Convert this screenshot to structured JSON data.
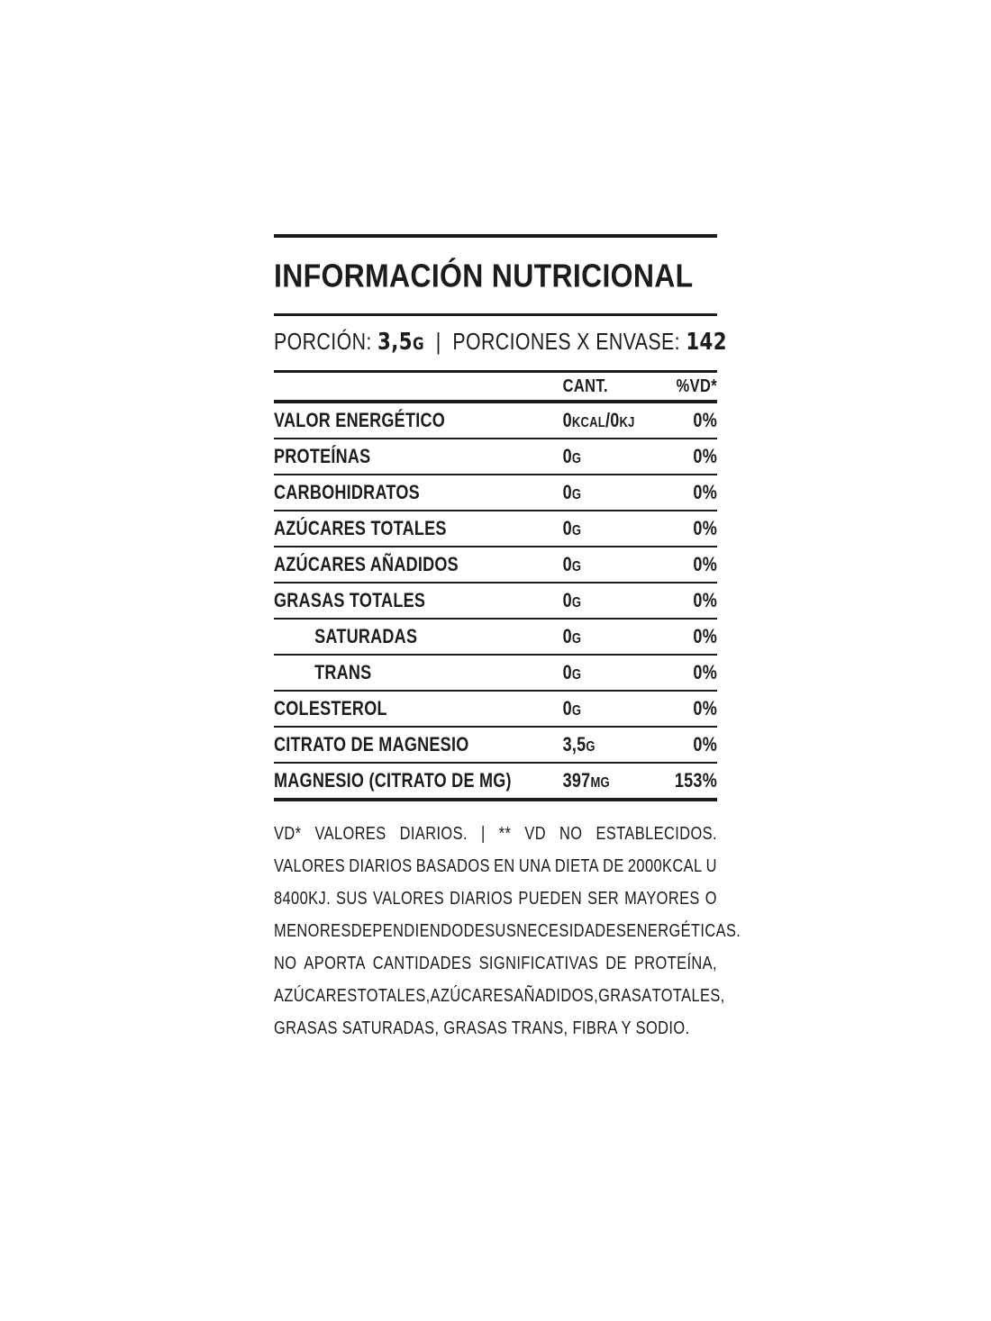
{
  "colors": {
    "ink": "#1c1c1c",
    "background": "#ffffff"
  },
  "panel": {
    "title": "INFORMACIÓN NUTRICIONAL"
  },
  "serving": {
    "parts": [
      {
        "text": "PORCIÓN: "
      },
      {
        "text": "3,5",
        "bold": true
      },
      {
        "text": "G",
        "bold": true,
        "small": true
      },
      {
        "text": "  |  "
      },
      {
        "text": "PORCIONES X ENVASE: "
      },
      {
        "text": "142",
        "bold": true
      }
    ]
  },
  "table": {
    "columns": {
      "amount": "CANT.",
      "daily_value": "%VD*"
    },
    "rows": [
      {
        "label": "VALOR ENERGÉTICO",
        "indent": false,
        "amount": [
          {
            "text": "0"
          },
          {
            "text": "KCAL",
            "small": true
          },
          {
            "text": "/0"
          },
          {
            "text": "KJ",
            "small": true
          }
        ],
        "dv": "0%"
      },
      {
        "label": "PROTEÍNAS",
        "indent": false,
        "amount": [
          {
            "text": "0"
          },
          {
            "text": "G",
            "small": true
          }
        ],
        "dv": "0%"
      },
      {
        "label": "CARBOHIDRATOS",
        "indent": false,
        "amount": [
          {
            "text": "0"
          },
          {
            "text": "G",
            "small": true
          }
        ],
        "dv": "0%"
      },
      {
        "label": "AZÚCARES TOTALES",
        "indent": false,
        "amount": [
          {
            "text": "0"
          },
          {
            "text": "G",
            "small": true
          }
        ],
        "dv": "0%"
      },
      {
        "label": "AZÚCARES AÑADIDOS",
        "indent": false,
        "amount": [
          {
            "text": "0"
          },
          {
            "text": "G",
            "small": true
          }
        ],
        "dv": "0%"
      },
      {
        "label": "GRASAS TOTALES",
        "indent": false,
        "amount": [
          {
            "text": "0"
          },
          {
            "text": "G",
            "small": true
          }
        ],
        "dv": "0%"
      },
      {
        "label": "SATURADAS",
        "indent": true,
        "amount": [
          {
            "text": "0"
          },
          {
            "text": "G",
            "small": true
          }
        ],
        "dv": "0%"
      },
      {
        "label": "TRANS",
        "indent": true,
        "amount": [
          {
            "text": "0"
          },
          {
            "text": "G",
            "small": true
          }
        ],
        "dv": "0%"
      },
      {
        "label": "COLESTEROL",
        "indent": false,
        "amount": [
          {
            "text": "0"
          },
          {
            "text": "G",
            "small": true
          }
        ],
        "dv": "0%"
      },
      {
        "label": "CITRATO DE MAGNESIO",
        "indent": false,
        "amount": [
          {
            "text": "3,5"
          },
          {
            "text": "G",
            "small": true
          }
        ],
        "dv": "0%"
      },
      {
        "label": "MAGNESIO (CITRATO DE MG)",
        "indent": false,
        "amount": [
          {
            "text": "397"
          },
          {
            "text": "MG",
            "small": true
          }
        ],
        "dv": "153%"
      }
    ]
  },
  "footnote": {
    "lines": [
      "VD* VALORES DIARIOS. | ** VD NO ESTABLECIDOS.",
      "VALORES DIARIOS BASADOS EN UNA DIETA DE 2000KCAL U",
      "8400KJ. SUS VALORES DIARIOS PUEDEN SER MAYORES O",
      "MENORES DEPENDIENDO DE SUS NECESIDADES ENERGÉTICAS.",
      "NO APORTA CANTIDADES SIGNIFICATIVAS DE PROTEÍNA,",
      "AZÚCARES TOTALES, AZÚCARES AÑADIDOS, GRASA TOTALES,",
      "GRASAS SATURADAS, GRASAS TRANS, FIBRA Y SODIO."
    ]
  }
}
